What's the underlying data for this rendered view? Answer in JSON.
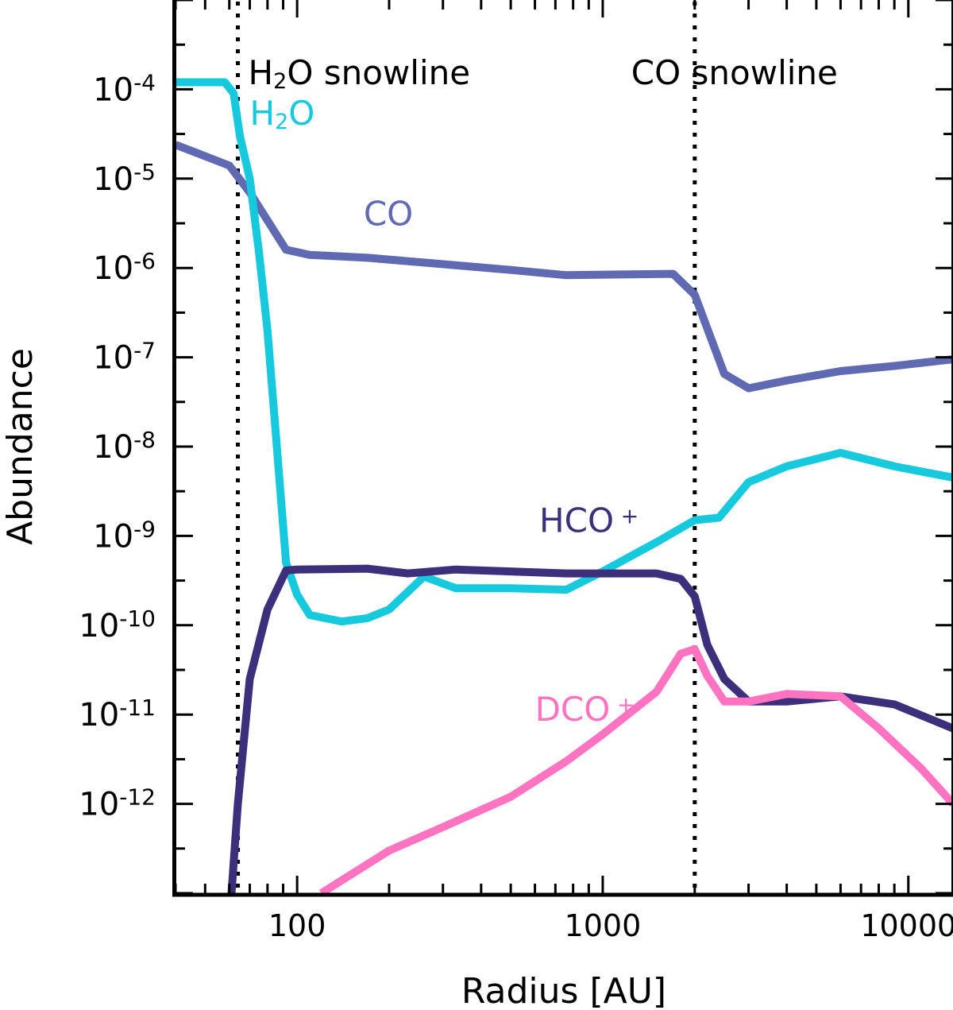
{
  "chart_data": {
    "type": "line",
    "xlabel": "Radius [AU]",
    "ylabel": "Abundance",
    "xscale": "log",
    "yscale": "log",
    "xlim": [
      40,
      14000
    ],
    "ylim": [
      1e-13,
      0.001
    ],
    "grid": false,
    "x_tick_labels": [
      "100",
      "1000",
      "10000"
    ],
    "x_ticks": [
      100,
      1000,
      10000
    ],
    "y_ticks": [
      1e-12,
      1e-11,
      1e-10,
      1e-09,
      1e-08,
      1e-07,
      1e-06,
      1e-05,
      0.0001
    ],
    "y_tick_labels": [
      {
        "base": "10",
        "exp": "-12"
      },
      {
        "base": "10",
        "exp": "-11"
      },
      {
        "base": "10",
        "exp": "-10"
      },
      {
        "base": "10",
        "exp": "-9"
      },
      {
        "base": "10",
        "exp": "-8"
      },
      {
        "base": "10",
        "exp": "-7"
      },
      {
        "base": "10",
        "exp": "-6"
      },
      {
        "base": "10",
        "exp": "-5"
      },
      {
        "base": "10",
        "exp": "-4"
      }
    ],
    "snowlines": [
      {
        "x": 64,
        "label": {
          "parts": [
            {
              "t": "H"
            },
            {
              "t": "2",
              "sub": true
            },
            {
              "t": "O snowline"
            }
          ]
        }
      },
      {
        "x": 2000,
        "label": {
          "parts": [
            {
              "t": "CO snowline"
            }
          ]
        }
      }
    ],
    "series": [
      {
        "name": "CO",
        "color": "#5f6ab3",
        "label": {
          "parts": [
            {
              "t": "CO"
            }
          ],
          "x": 165,
          "y": 3e-06
        },
        "points": [
          [
            40,
            2.4e-05
          ],
          [
            60,
            1.4e-05
          ],
          [
            70,
            7e-06
          ],
          [
            92,
            1.6e-06
          ],
          [
            110,
            1.4e-06
          ],
          [
            170,
            1.3e-06
          ],
          [
            260,
            1.15e-06
          ],
          [
            500,
            9.5e-07
          ],
          [
            760,
            8.3e-07
          ],
          [
            1700,
            8.6e-07
          ],
          [
            2000,
            5e-07
          ],
          [
            2250,
            1.7e-07
          ],
          [
            2500,
            6.5e-08
          ],
          [
            3000,
            4.5e-08
          ],
          [
            4000,
            5.5e-08
          ],
          [
            6000,
            7e-08
          ],
          [
            9000,
            8e-08
          ],
          [
            14000,
            9.5e-08
          ]
        ]
      },
      {
        "name": "H2O",
        "color": "#17c9dc",
        "label": {
          "parts": [
            {
              "t": "H"
            },
            {
              "t": "2",
              "sub": true
            },
            {
              "t": "O"
            }
          ],
          "x": 70,
          "y": 4e-05
        },
        "points": [
          [
            40,
            0.00012
          ],
          [
            58,
            0.00012
          ],
          [
            62,
            9e-05
          ],
          [
            65,
            3e-05
          ],
          [
            70,
            1e-05
          ],
          [
            75,
            1.5e-06
          ],
          [
            80,
            2e-07
          ],
          [
            85,
            1.5e-08
          ],
          [
            92,
            5e-10
          ],
          [
            100,
            2.2e-10
          ],
          [
            110,
            1.3e-10
          ],
          [
            140,
            1.1e-10
          ],
          [
            170,
            1.2e-10
          ],
          [
            200,
            1.5e-10
          ],
          [
            260,
            3.5e-10
          ],
          [
            330,
            2.6e-10
          ],
          [
            500,
            2.6e-10
          ],
          [
            760,
            2.5e-10
          ],
          [
            1000,
            4e-10
          ],
          [
            1500,
            8.5e-10
          ],
          [
            2000,
            1.5e-09
          ],
          [
            2400,
            1.6e-09
          ],
          [
            3000,
            4e-09
          ],
          [
            4000,
            6e-09
          ],
          [
            6000,
            8.5e-09
          ],
          [
            9000,
            6e-09
          ],
          [
            14000,
            4.5e-09
          ]
        ]
      },
      {
        "name": "HCO+",
        "color": "#3e2f7c",
        "label": {
          "parts": [
            {
              "t": "HCO"
            },
            {
              "t": " +",
              "sup": true
            }
          ],
          "x": 620,
          "y": 1.1e-09
        },
        "points": [
          [
            61,
            1e-13
          ],
          [
            64,
            1e-12
          ],
          [
            70,
            2.5e-11
          ],
          [
            80,
            1.5e-10
          ],
          [
            92,
            4.1e-10
          ],
          [
            100,
            4.2e-10
          ],
          [
            170,
            4.3e-10
          ],
          [
            230,
            3.8e-10
          ],
          [
            330,
            4.2e-10
          ],
          [
            760,
            3.8e-10
          ],
          [
            1500,
            3.8e-10
          ],
          [
            1800,
            3.3e-10
          ],
          [
            2000,
            2.1e-10
          ],
          [
            2200,
            6e-11
          ],
          [
            2500,
            2.5e-11
          ],
          [
            3000,
            1.4e-11
          ],
          [
            4000,
            1.4e-11
          ],
          [
            6000,
            1.6e-11
          ],
          [
            9000,
            1.3e-11
          ],
          [
            14000,
            7e-12
          ]
        ]
      },
      {
        "name": "DCO+",
        "color": "#ff73c0",
        "label": {
          "parts": [
            {
              "t": "DCO"
            },
            {
              "t": " +",
              "sup": true
            }
          ],
          "x": 600,
          "y": 8.5e-12
        },
        "points": [
          [
            120,
            1e-13
          ],
          [
            200,
            3e-13
          ],
          [
            300,
            5.5e-13
          ],
          [
            500,
            1.2e-12
          ],
          [
            760,
            3e-12
          ],
          [
            1000,
            6e-12
          ],
          [
            1500,
            1.8e-11
          ],
          [
            1800,
            4.8e-11
          ],
          [
            2000,
            5.4e-11
          ],
          [
            2200,
            2.7e-11
          ],
          [
            2500,
            1.4e-11
          ],
          [
            3000,
            1.4e-11
          ],
          [
            4000,
            1.7e-11
          ],
          [
            6000,
            1.6e-11
          ],
          [
            8000,
            7e-12
          ],
          [
            11000,
            2.5e-12
          ],
          [
            14000,
            1e-12
          ]
        ]
      }
    ]
  }
}
